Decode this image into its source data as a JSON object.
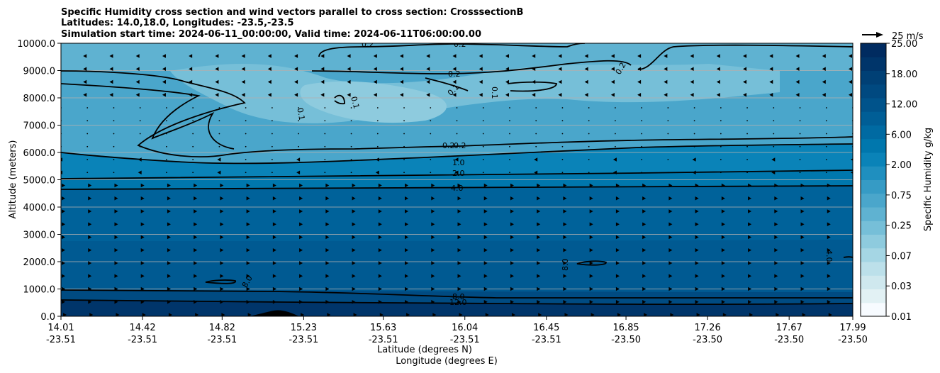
{
  "chart_data": {
    "type": "contourf",
    "title_lines": [
      "Specific Humidity cross section and wind vectors parallel to cross section: CrosssectionB",
      "Latitudes: 14.0,18.0, Longitudes: -23.5,-23.5",
      "Simulation start time: 2024-06-11_00:00:00, Valid time: 2024-06-11T06:00:00.00"
    ],
    "xlabel_lat": "Latitude (degrees N)",
    "xlabel_lon": "Longitude (degrees E)",
    "ylabel": "Altitude (meters)",
    "ylim": [
      0,
      10000
    ],
    "xlim": [
      14.01,
      17.99
    ],
    "x_ticks": [
      {
        "lat": "14.01",
        "lon": "-23.51",
        "v": 14.01
      },
      {
        "lat": "14.42",
        "lon": "-23.51",
        "v": 14.42
      },
      {
        "lat": "14.82",
        "lon": "-23.51",
        "v": 14.82
      },
      {
        "lat": "15.23",
        "lon": "-23.51",
        "v": 15.23
      },
      {
        "lat": "15.63",
        "lon": "-23.51",
        "v": 15.63
      },
      {
        "lat": "16.04",
        "lon": "-23.51",
        "v": 16.04
      },
      {
        "lat": "16.45",
        "lon": "-23.51",
        "v": 16.45
      },
      {
        "lat": "16.85",
        "lon": "-23.50",
        "v": 16.85
      },
      {
        "lat": "17.26",
        "lon": "-23.50",
        "v": 17.26
      },
      {
        "lat": "17.67",
        "lon": "-23.50",
        "v": 17.67
      },
      {
        "lat": "17.99",
        "lon": "-23.50",
        "v": 17.99
      }
    ],
    "y_ticks": [
      "0.0",
      "1000.0",
      "2000.0",
      "3000.0",
      "4000.0",
      "5000.0",
      "6000.0",
      "7000.0",
      "8000.0",
      "9000.0",
      "10000.0"
    ],
    "y_tick_values": [
      0,
      1000,
      2000,
      3000,
      4000,
      5000,
      6000,
      7000,
      8000,
      9000,
      10000
    ],
    "grid": "horizontal",
    "colorbar": {
      "label": "Specific Humidity g/kg",
      "tick_labels": [
        "0.01",
        "0.03",
        "0.07",
        "0.25",
        "0.75",
        "2.00",
        "6.00",
        "12.00",
        "18.00",
        "25.00"
      ],
      "colors": [
        "#f7fbff",
        "#e2f1f4",
        "#cfe8ee",
        "#bce0ea",
        "#a5d6e4",
        "#8ecbde",
        "#76bfd8",
        "#5fb2d1",
        "#4aa6cb",
        "#369bc5",
        "#1f8fbf",
        "#0a83b8",
        "#0077ad",
        "#006aa2",
        "#005e96",
        "#00538b",
        "#004980",
        "#004075",
        "#00356a",
        "#002b60"
      ]
    },
    "contour_labels": [
      "0.1",
      "0.2",
      "1.0",
      "2.0",
      "4.0",
      "8.0",
      "12.0"
    ],
    "wind_key": {
      "label": "25 m/s",
      "value": 25,
      "unit": "m/s"
    },
    "terrain_peak": {
      "lat": 15.1,
      "alt": 220
    }
  }
}
